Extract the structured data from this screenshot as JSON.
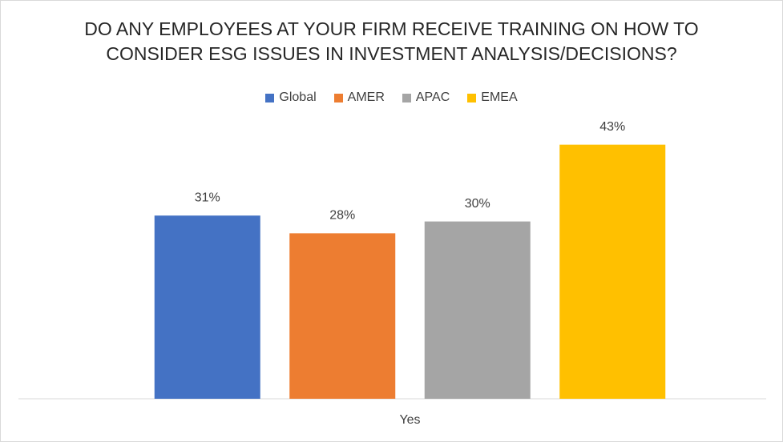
{
  "chart_data": {
    "type": "bar",
    "title": "DO ANY EMPLOYEES AT YOUR FIRM RECEIVE TRAINING ON HOW TO CONSIDER ESG ISSUES IN INVESTMENT ANALYSIS/DECISIONS?",
    "categories": [
      "Yes"
    ],
    "series": [
      {
        "name": "Global",
        "color": "#4472c4",
        "values": [
          31
        ],
        "value_labels": [
          "31%"
        ]
      },
      {
        "name": "AMER",
        "color": "#ed7d31",
        "values": [
          28
        ],
        "value_labels": [
          "28%"
        ]
      },
      {
        "name": "APAC",
        "color": "#a5a5a5",
        "values": [
          30
        ],
        "value_labels": [
          "30%"
        ]
      },
      {
        "name": "EMEA",
        "color": "#ffc000",
        "values": [
          43
        ],
        "value_labels": [
          "43%"
        ]
      }
    ],
    "ylim": [
      0,
      50
    ],
    "legend": "top"
  }
}
